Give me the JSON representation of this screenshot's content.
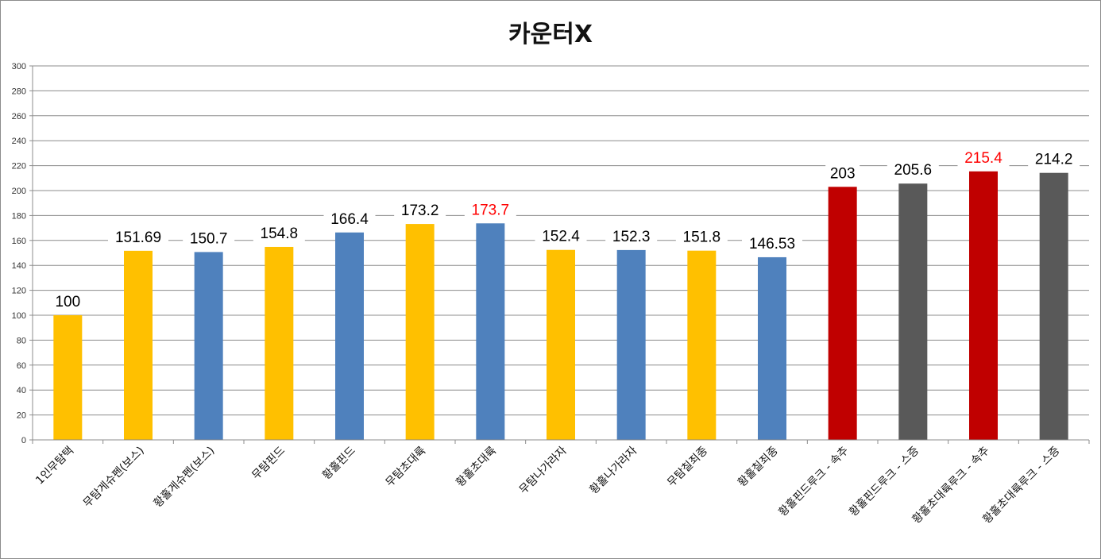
{
  "chart_data": {
    "type": "bar",
    "title": "카운터X",
    "xlabel": "",
    "ylabel": "",
    "ylim": [
      0,
      300
    ],
    "ytick_step": 20,
    "grid": true,
    "legend": "none",
    "categories": [
      "1인무탐택",
      "무탐게슈펜(보스)",
      "황홀게슈펜(보스)",
      "무탐핀드",
      "황홀핀드",
      "무탐초대륙",
      "황홀초대륙",
      "무탐나가라자",
      "황홀나가라자",
      "무탐칠죄종",
      "황홀칠죄종",
      "황홀핀드루크 - 속추",
      "황홀핀드루크 - 스증",
      "황홀초대륙루크 - 속추",
      "황홀초대륙루크 - 스증"
    ],
    "values": [
      100,
      151.69,
      150.7,
      154.8,
      166.4,
      173.2,
      173.7,
      152.4,
      152.3,
      151.8,
      146.53,
      203,
      205.6,
      215.4,
      214.2
    ],
    "value_labels": [
      "100",
      "151.69",
      "150.7",
      "154.8",
      "166.4",
      "173.2",
      "173.7",
      "152.4",
      "152.3",
      "151.8",
      "146.53",
      "203",
      "205.6",
      "215.4",
      "214.2"
    ],
    "bar_colors": [
      "#FFC000",
      "#FFC000",
      "#4F81BD",
      "#FFC000",
      "#4F81BD",
      "#FFC000",
      "#4F81BD",
      "#FFC000",
      "#4F81BD",
      "#FFC000",
      "#4F81BD",
      "#C00000",
      "#595959",
      "#C00000",
      "#595959"
    ],
    "label_colors": [
      "#000000",
      "#000000",
      "#000000",
      "#000000",
      "#000000",
      "#000000",
      "#FF0000",
      "#000000",
      "#000000",
      "#000000",
      "#000000",
      "#000000",
      "#000000",
      "#FF0000",
      "#000000"
    ],
    "gridline_color": "#8c8c8c"
  }
}
